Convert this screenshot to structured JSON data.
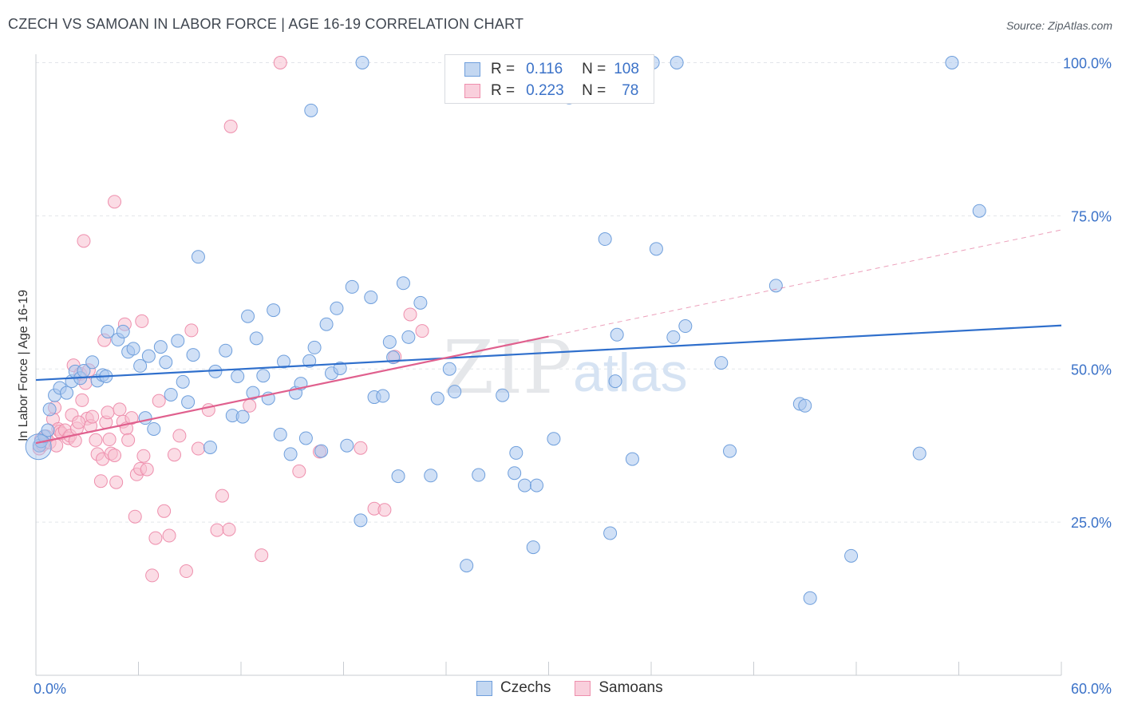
{
  "header": {
    "title": "CZECH VS SAMOAN IN LABOR FORCE | AGE 16-19 CORRELATION CHART",
    "source": "Source: ZipAtlas.com"
  },
  "legend": {
    "r_label": "R =",
    "n_label": "N =",
    "rows": [
      {
        "name": "Czechs",
        "r": "0.116",
        "n": "108",
        "color": "#6f9fdc"
      },
      {
        "name": "Samoans",
        "r": "0.223",
        "n": "78",
        "color": "#ee8fad"
      }
    ]
  },
  "bottom_legend": {
    "czechs": "Czechs",
    "samoans": "Samoans"
  },
  "watermark": {
    "zip": "ZIP",
    "atlas": "atlas"
  },
  "colors": {
    "czech_fill": "#a9c6ee",
    "czech_stroke": "#6f9fdc",
    "czech_line": "#2f6fcc",
    "samoan_fill": "#f7bfd0",
    "samoan_stroke": "#ee8fad",
    "samoan_line": "#e0608e",
    "tick_label": "#3b72c8"
  },
  "chart_data": {
    "type": "scatter",
    "title": "CZECH VS SAMOAN IN LABOR FORCE | AGE 16-19 CORRELATION CHART",
    "xlabel": "",
    "ylabel": "In Labor Force | Age 16-19",
    "xlim": [
      0,
      60
    ],
    "ylim": [
      0,
      105
    ],
    "x_tick_labels": [
      "0.0%",
      "60.0%"
    ],
    "y_ticks": [
      25,
      50,
      75,
      100
    ],
    "y_tick_labels": [
      "25.0%",
      "50.0%",
      "75.0%",
      "100.0%"
    ],
    "grid": "horizontal dashed",
    "legend_position": "top-center",
    "series": [
      {
        "name": "Czechs",
        "r": 0.116,
        "n": 108,
        "trend": {
          "x": [
            0,
            60
          ],
          "y": [
            48.2,
            57.1
          ]
        },
        "points": [
          [
            0.2,
            37.5
          ],
          [
            0.3,
            38.2
          ],
          [
            0.5,
            39.0
          ],
          [
            0.7,
            40.0
          ],
          [
            0.8,
            43.4
          ],
          [
            1.1,
            45.7
          ],
          [
            1.4,
            46.9
          ],
          [
            1.8,
            46.1
          ],
          [
            2.1,
            48.0
          ],
          [
            2.3,
            49.6
          ],
          [
            2.6,
            48.5
          ],
          [
            2.8,
            49.7
          ],
          [
            3.3,
            51.1
          ],
          [
            3.6,
            48.1
          ],
          [
            3.9,
            49.0
          ],
          [
            4.1,
            48.8
          ],
          [
            4.2,
            56.1
          ],
          [
            4.8,
            54.8
          ],
          [
            5.1,
            56.1
          ],
          [
            5.4,
            52.8
          ],
          [
            5.7,
            53.3
          ],
          [
            6.1,
            50.5
          ],
          [
            6.4,
            42.0
          ],
          [
            6.6,
            52.1
          ],
          [
            6.9,
            40.2
          ],
          [
            7.3,
            53.6
          ],
          [
            7.6,
            51.1
          ],
          [
            7.9,
            45.8
          ],
          [
            8.3,
            54.6
          ],
          [
            8.6,
            47.9
          ],
          [
            8.9,
            44.6
          ],
          [
            9.2,
            52.3
          ],
          [
            9.5,
            68.3
          ],
          [
            10.2,
            37.2
          ],
          [
            10.5,
            49.6
          ],
          [
            11.1,
            53.0
          ],
          [
            11.5,
            42.4
          ],
          [
            11.8,
            48.8
          ],
          [
            12.1,
            42.2
          ],
          [
            12.4,
            58.6
          ],
          [
            12.7,
            46.1
          ],
          [
            12.9,
            55.0
          ],
          [
            13.3,
            48.9
          ],
          [
            13.6,
            45.2
          ],
          [
            13.9,
            59.6
          ],
          [
            14.3,
            39.3
          ],
          [
            14.5,
            51.2
          ],
          [
            14.9,
            36.1
          ],
          [
            15.2,
            46.1
          ],
          [
            15.5,
            47.6
          ],
          [
            15.8,
            38.7
          ],
          [
            16.0,
            51.3
          ],
          [
            16.3,
            53.5
          ],
          [
            16.1,
            92.2
          ],
          [
            16.7,
            36.6
          ],
          [
            17.0,
            57.3
          ],
          [
            17.3,
            49.3
          ],
          [
            17.6,
            59.9
          ],
          [
            17.8,
            50.1
          ],
          [
            18.2,
            37.5
          ],
          [
            18.5,
            63.4
          ],
          [
            19.0,
            25.3
          ],
          [
            19.1,
            100.0
          ],
          [
            19.6,
            61.7
          ],
          [
            19.8,
            45.4
          ],
          [
            20.3,
            45.6
          ],
          [
            20.7,
            54.4
          ],
          [
            20.9,
            51.9
          ],
          [
            21.2,
            32.5
          ],
          [
            21.5,
            64.0
          ],
          [
            21.8,
            55.2
          ],
          [
            22.5,
            60.8
          ],
          [
            23.1,
            32.6
          ],
          [
            23.5,
            45.2
          ],
          [
            24.2,
            50.0
          ],
          [
            24.5,
            46.3
          ],
          [
            25.2,
            17.9
          ],
          [
            25.9,
            32.7
          ],
          [
            26.8,
            100.0
          ],
          [
            27.3,
            45.7
          ],
          [
            28.1,
            36.3
          ],
          [
            28.0,
            33.0
          ],
          [
            28.6,
            31.0
          ],
          [
            29.3,
            31.0
          ],
          [
            29.1,
            20.9
          ],
          [
            30.3,
            38.6
          ],
          [
            31.2,
            94.3
          ],
          [
            31.0,
            100.0
          ],
          [
            33.3,
            71.2
          ],
          [
            33.6,
            23.2
          ],
          [
            33.9,
            48.0
          ],
          [
            34.0,
            55.6
          ],
          [
            34.9,
            35.3
          ],
          [
            36.1,
            100.0
          ],
          [
            36.3,
            69.6
          ],
          [
            37.3,
            55.2
          ],
          [
            37.5,
            100.0
          ],
          [
            38.0,
            57.0
          ],
          [
            40.1,
            51.0
          ],
          [
            40.6,
            36.6
          ],
          [
            43.3,
            63.6
          ],
          [
            44.7,
            44.3
          ],
          [
            45.0,
            44.0
          ],
          [
            45.3,
            12.6
          ],
          [
            47.7,
            19.5
          ],
          [
            51.7,
            36.2
          ],
          [
            53.6,
            100.0
          ],
          [
            55.2,
            75.8
          ]
        ]
      },
      {
        "name": "Samoans",
        "r": 0.223,
        "n": 78,
        "trend": {
          "x": [
            0,
            30
          ],
          "y": [
            37.9,
            55.3
          ]
        },
        "trend_extension": {
          "x": [
            30,
            60
          ],
          "y": [
            55.3,
            72.7
          ]
        },
        "points": [
          [
            0.2,
            37.0
          ],
          [
            0.3,
            38.5
          ],
          [
            0.4,
            37.6
          ],
          [
            0.6,
            39.0
          ],
          [
            0.8,
            38.0
          ],
          [
            1.0,
            41.8
          ],
          [
            1.1,
            43.7
          ],
          [
            1.2,
            37.5
          ],
          [
            1.3,
            40.2
          ],
          [
            1.4,
            39.8
          ],
          [
            1.5,
            39.5
          ],
          [
            1.7,
            40.0
          ],
          [
            1.9,
            38.7
          ],
          [
            2.0,
            39.1
          ],
          [
            2.1,
            42.5
          ],
          [
            2.2,
            50.6
          ],
          [
            2.3,
            38.3
          ],
          [
            2.4,
            40.3
          ],
          [
            2.6,
            49.2
          ],
          [
            2.7,
            44.9
          ],
          [
            2.9,
            47.7
          ],
          [
            3.0,
            41.9
          ],
          [
            3.1,
            49.8
          ],
          [
            3.2,
            40.7
          ],
          [
            3.5,
            38.4
          ],
          [
            3.6,
            36.1
          ],
          [
            3.8,
            31.7
          ],
          [
            3.9,
            35.3
          ],
          [
            4.0,
            54.7
          ],
          [
            4.1,
            41.3
          ],
          [
            4.2,
            42.9
          ],
          [
            4.3,
            38.5
          ],
          [
            4.4,
            36.2
          ],
          [
            4.6,
            35.9
          ],
          [
            4.7,
            31.5
          ],
          [
            4.9,
            43.4
          ],
          [
            5.1,
            41.4
          ],
          [
            5.2,
            57.3
          ],
          [
            5.3,
            40.3
          ],
          [
            5.4,
            38.4
          ],
          [
            5.6,
            42.0
          ],
          [
            5.8,
            25.9
          ],
          [
            5.9,
            32.8
          ],
          [
            6.1,
            33.7
          ],
          [
            6.3,
            35.8
          ],
          [
            6.5,
            33.6
          ],
          [
            6.8,
            16.3
          ],
          [
            7.0,
            22.4
          ],
          [
            7.2,
            44.8
          ],
          [
            7.5,
            26.8
          ],
          [
            7.8,
            22.8
          ],
          [
            8.1,
            36.0
          ],
          [
            8.4,
            39.1
          ],
          [
            8.8,
            17.0
          ],
          [
            9.1,
            56.3
          ],
          [
            9.5,
            37.0
          ],
          [
            10.1,
            43.3
          ],
          [
            10.6,
            23.7
          ],
          [
            10.9,
            29.3
          ],
          [
            11.3,
            23.8
          ],
          [
            11.4,
            89.6
          ],
          [
            12.5,
            44.0
          ],
          [
            13.2,
            19.6
          ],
          [
            14.3,
            100.0
          ],
          [
            15.4,
            33.3
          ],
          [
            16.6,
            36.5
          ],
          [
            19.0,
            37.1
          ],
          [
            19.8,
            27.2
          ],
          [
            20.4,
            27.0
          ],
          [
            21.0,
            52.0
          ],
          [
            21.9,
            58.9
          ],
          [
            22.6,
            56.2
          ],
          [
            26.1,
            100.0
          ],
          [
            6.2,
            57.8
          ],
          [
            4.6,
            77.3
          ],
          [
            2.8,
            70.9
          ],
          [
            3.3,
            42.2
          ],
          [
            2.5,
            41.3
          ]
        ]
      }
    ]
  }
}
